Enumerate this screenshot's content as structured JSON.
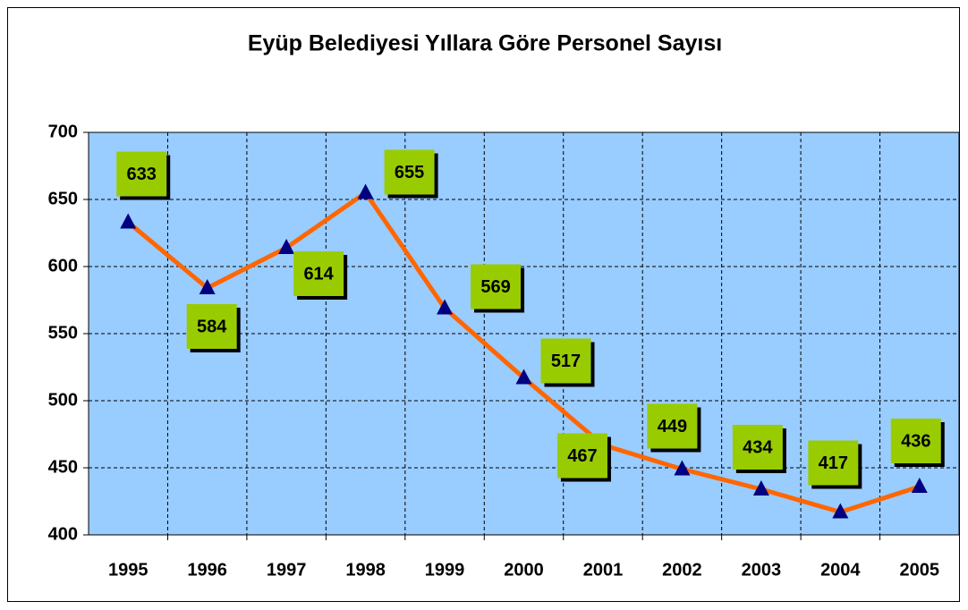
{
  "chart_data": {
    "type": "line",
    "title": "Eyüp Belediyesi Yıllara Göre Personel Sayısı",
    "categories": [
      "1995",
      "1996",
      "1997",
      "1998",
      "1999",
      "2000",
      "2001",
      "2002",
      "2003",
      "2004",
      "2005"
    ],
    "series": [
      {
        "name": "Personel Sayısı",
        "color": "#ff6600",
        "marker_color": "#000080",
        "values": [
          633,
          584,
          614,
          655,
          569,
          517,
          467,
          449,
          434,
          417,
          436
        ]
      }
    ],
    "ylim": [
      400,
      700
    ],
    "yticks": [
      400,
      450,
      500,
      550,
      600,
      650,
      700
    ],
    "grid": true,
    "plot_background": "#99ccff",
    "label_background": "#99cc00"
  }
}
